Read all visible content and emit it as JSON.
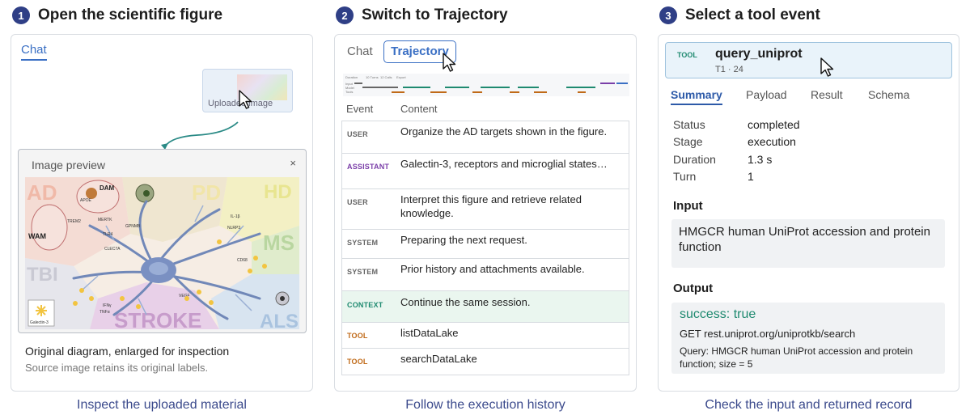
{
  "steps": [
    {
      "num": "1",
      "title": "Open the scientific figure",
      "caption": "Inspect the uploaded material"
    },
    {
      "num": "2",
      "title": "Switch to Trajectory",
      "caption": "Follow the execution history"
    },
    {
      "num": "3",
      "title": "Select a tool event",
      "caption": "Check the input and returned record"
    }
  ],
  "panel1": {
    "tab_chat": "Chat",
    "thumbnail_label": "Uploaded image",
    "preview_title": "Image preview",
    "close_glyph": "×",
    "figure_labels": {
      "ad": "AD",
      "pd": "PD",
      "hd": "HD",
      "ms": "MS",
      "tbi": "TBI",
      "als": "ALS",
      "stroke": "STROKE",
      "wam": "WAM",
      "dam": "DAM",
      "galectin": "Galectin-3",
      "trem2": "TREM2",
      "tlr4": "TLR4",
      "il1b": "IL-1β",
      "nlrp3": "NLRP3",
      "cd68": "CD68",
      "clec7a": "CLEC7A",
      "gpnmb": "GPNMB",
      "apoe": "APOE",
      "mertk": "MERTK",
      "vegf": "VEGF",
      "ifng": "IFNγ",
      "tnfa": "TNFα"
    },
    "original_title": "Original diagram, enlarged for inspection",
    "original_subtitle": "Source image retains its original labels."
  },
  "panel2": {
    "tab_chat": "Chat",
    "tab_trajectory": "Trajectory",
    "timeline_labels": [
      "Duration",
      "10 Turns",
      "12 Calls",
      "Export"
    ],
    "timeline_rows": [
      "Input",
      "Model",
      "Tools"
    ],
    "col_event": "Event",
    "col_content": "Content",
    "rows": [
      {
        "event": "USER",
        "type": "user",
        "content": "Organize the AD targets shown in the figure."
      },
      {
        "event": "ASSISTANT",
        "type": "assistant",
        "content": "Galectin-3, receptors and microglial states…"
      },
      {
        "event": "USER",
        "type": "user",
        "content": "Interpret this figure and retrieve related knowledge."
      },
      {
        "event": "SYSTEM",
        "type": "system",
        "content": "Preparing the next request."
      },
      {
        "event": "SYSTEM",
        "type": "system",
        "content": "Prior history and attachments available."
      },
      {
        "event": "CONTEXT",
        "type": "context",
        "content": "Continue the same session."
      },
      {
        "event": "TOOL",
        "type": "tool",
        "content": "listDataLake"
      },
      {
        "event": "TOOL",
        "type": "tool",
        "content": "searchDataLake"
      }
    ]
  },
  "panel3": {
    "badge": "TOOL",
    "tool_name": "query_uniprot",
    "tool_meta": "T1 · 24",
    "tabs": [
      "Summary",
      "Payload",
      "Result",
      "Schema"
    ],
    "active_tab": "Summary",
    "summary": [
      {
        "key": "Status",
        "value": "completed"
      },
      {
        "key": "Stage",
        "value": "execution"
      },
      {
        "key": "Duration",
        "value": "1.3 s"
      },
      {
        "key": "Turn",
        "value": "1"
      }
    ],
    "input_title": "Input",
    "input_text": "HMGCR human UniProt accession and protein function",
    "output_title": "Output",
    "output_status": "success: true",
    "output_request": "GET rest.uniprot.org/uniprotkb/search",
    "output_query": "Query: HMGCR human UniProt accession and protein function; size = 5"
  },
  "colors": {
    "accent": "#3a6fc4",
    "step_badge": "#2f3f86",
    "assistant": "#7a3ea8",
    "context": "#1f8a70",
    "tool": "#c06a18"
  }
}
